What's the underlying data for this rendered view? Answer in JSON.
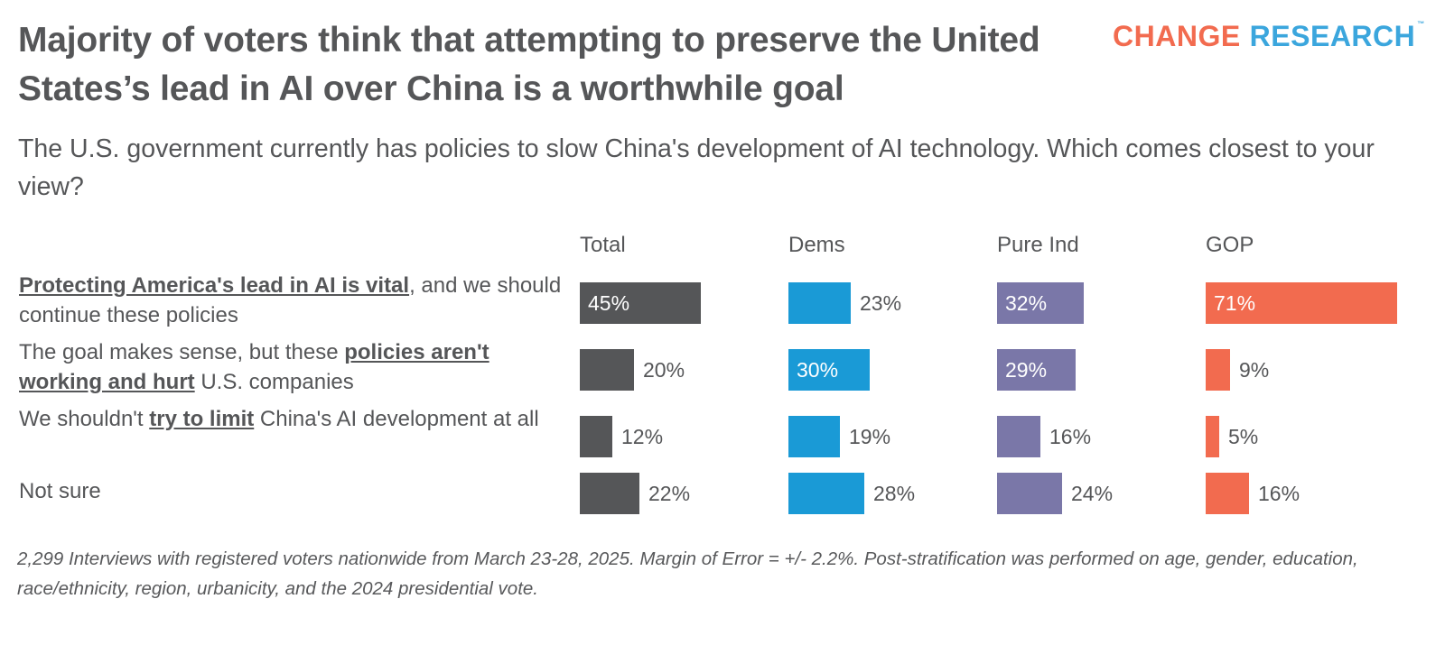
{
  "title": "Majority of voters think that attempting to preserve the United States’s lead in AI over China is a worthwhile goal",
  "logo": {
    "part1": "CHANGE",
    "part2": "RESEARCH",
    "tm": "™"
  },
  "subtitle": "The U.S. government currently has policies to slow China's development of AI technology. Which comes closest to your view?",
  "rows": [
    {
      "parts": [
        {
          "text": "Protecting America's lead in AI is vital",
          "em": true
        },
        {
          "text": ", and we should continue these policies",
          "em": false
        }
      ]
    },
    {
      "parts": [
        {
          "text": "The goal makes sense, but these ",
          "em": false
        },
        {
          "text": "policies aren't working and hurt",
          "em": true
        },
        {
          "text": " U.S. companies",
          "em": false
        }
      ]
    },
    {
      "parts": [
        {
          "text": "We shouldn't ",
          "em": false
        },
        {
          "text": "try to limit",
          "em": true
        },
        {
          "text": " China's AI development at all",
          "em": false
        }
      ]
    },
    {
      "parts": [
        {
          "text": "Not sure",
          "em": false
        }
      ]
    }
  ],
  "chart_data": {
    "type": "bar",
    "categories": [
      "Protecting America's lead in AI is vital, and we should continue these policies",
      "The goal makes sense, but these policies aren't working and hurt U.S. companies",
      "We shouldn't try to limit China's AI development at all",
      "Not sure"
    ],
    "series": [
      {
        "name": "Total",
        "color": "#555658",
        "values": [
          45,
          20,
          12,
          22
        ],
        "labels": [
          "45%",
          "20%",
          "12%",
          "22%"
        ]
      },
      {
        "name": "Dems",
        "color": "#1a9ad6",
        "values": [
          23,
          30,
          19,
          28
        ],
        "labels": [
          "23%",
          "30%",
          "19%",
          "28%"
        ]
      },
      {
        "name": "Pure Ind",
        "color": "#7a77a8",
        "values": [
          32,
          29,
          16,
          24
        ],
        "labels": [
          "32%",
          "29%",
          "16%",
          "24%"
        ]
      },
      {
        "name": "GOP",
        "color": "#f26b4f",
        "values": [
          71,
          9,
          5,
          16
        ],
        "labels": [
          "71%",
          "9%",
          "5%",
          "16%"
        ]
      }
    ],
    "inside_label_color": "#ffffff",
    "outside_label_color": "#555658"
  },
  "footnote": "2,299 Interviews with registered voters nationwide from March 23-28, 2025. Margin of Error = +/- 2.2%. Post-stratification was performed on age, gender, education, race/ethnicity, region, urbanicity, and the 2024 presidential vote."
}
